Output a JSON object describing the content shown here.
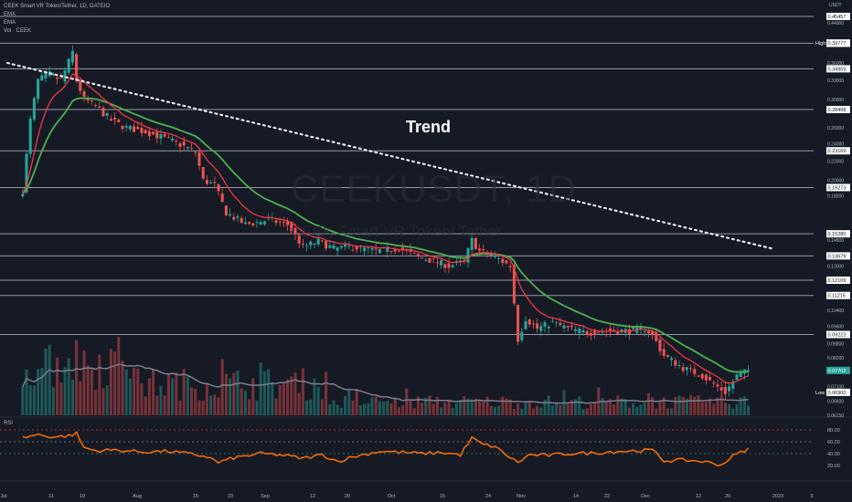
{
  "header": {
    "title": "CEEK Smart VR Token/Tether, 1D, GATEIO",
    "indicator_1": "EMA",
    "indicator_2": "EMA",
    "volume_label": "Vol · CEEK",
    "rsi_label": "RSI",
    "unit": "USDT"
  },
  "watermark": {
    "symbol": "CEEKUSDT, 1D",
    "name": "CEEK Smart VR Token/ Tether"
  },
  "annotation": {
    "trend": "Trend"
  },
  "colors": {
    "background": "#161a25",
    "up": "#26a69a",
    "down": "#ef5350",
    "ema_fast": "#f23645",
    "ema_slow": "#4caf50",
    "rsi": "#ff6d00",
    "volume_ma": "#7a7f8b",
    "hline": "#9598a1",
    "trendline": "#ffffff",
    "label_bg": "#ffffff"
  },
  "chart_data": {
    "type": "candlestick",
    "scale": "log",
    "x_ticks": [
      "Jul",
      "11",
      "19",
      "Aug",
      "15",
      "23",
      "Sep",
      "12",
      "20",
      "Oct",
      "15",
      "24",
      "Nov",
      "14",
      "22",
      "Dec",
      "12",
      "20",
      "2023",
      "9"
    ],
    "y_ticks": [
      "0.44000",
      "0.36000",
      "0.33000",
      "0.30000",
      "0.26000",
      "0.24000",
      "0.22000",
      "0.20000",
      "0.18500",
      "0.14800",
      "0.13000",
      "0.10400",
      "0.09600",
      "0.08800",
      "0.08200",
      "0.07100",
      "0.06600",
      "0.06150"
    ],
    "price_levels": [
      {
        "label": "0.45457",
        "value": 0.45457
      },
      {
        "label": "0.39736",
        "value": 0.39736
      },
      {
        "label": "0.34959",
        "value": 0.34959
      },
      {
        "label": "0.28498",
        "value": 0.28498
      },
      {
        "label": "0.23169",
        "value": 0.23169
      },
      {
        "label": "0.19273",
        "value": 0.19273
      },
      {
        "label": "0.15280",
        "value": 0.1528
      },
      {
        "label": "0.13679",
        "value": 0.13679
      },
      {
        "label": "0.12109",
        "value": 0.12109
      },
      {
        "label": "0.11215",
        "value": 0.11215
      },
      {
        "label": "0.09222",
        "value": 0.09222
      }
    ],
    "high": {
      "tag": "High",
      "label": "0.39777",
      "value": 0.39777
    },
    "low": {
      "tag": "Low",
      "label": "0.06900",
      "value": 0.069
    },
    "last": {
      "label": "0.07702",
      "value": 0.07702
    },
    "trendline": {
      "from": {
        "date": "Jun 27",
        "price": 0.36
      },
      "to": {
        "date": "Jan 12",
        "price": 0.142
      },
      "style": "dotted"
    },
    "close_path": [
      {
        "date": "Jul 1",
        "close": 0.19
      },
      {
        "date": "Jul 3",
        "close": 0.27
      },
      {
        "date": "Jul 5",
        "close": 0.33
      },
      {
        "date": "Jul 8",
        "close": 0.34
      },
      {
        "date": "Jul 11",
        "close": 0.33
      },
      {
        "date": "Jul 14",
        "close": 0.38
      },
      {
        "date": "Jul 15",
        "close": 0.33
      },
      {
        "date": "Jul 17",
        "close": 0.3
      },
      {
        "date": "Jul 20",
        "close": 0.29
      },
      {
        "date": "Jul 24",
        "close": 0.27
      },
      {
        "date": "Jul 28",
        "close": 0.26
      },
      {
        "date": "Aug 2",
        "close": 0.255
      },
      {
        "date": "Aug 8",
        "close": 0.245
      },
      {
        "date": "Aug 13",
        "close": 0.235
      },
      {
        "date": "Aug 15",
        "close": 0.23
      },
      {
        "date": "Aug 17",
        "close": 0.2
      },
      {
        "date": "Aug 20",
        "close": 0.195
      },
      {
        "date": "Aug 23",
        "close": 0.17
      },
      {
        "date": "Aug 28",
        "close": 0.16
      },
      {
        "date": "Sep 3",
        "close": 0.164
      },
      {
        "date": "Sep 8",
        "close": 0.16
      },
      {
        "date": "Sep 12",
        "close": 0.143
      },
      {
        "date": "Sep 16",
        "close": 0.147
      },
      {
        "date": "Sep 20",
        "close": 0.142
      },
      {
        "date": "Sep 25",
        "close": 0.143
      },
      {
        "date": "Oct 1",
        "close": 0.14
      },
      {
        "date": "Oct 7",
        "close": 0.142
      },
      {
        "date": "Oct 12",
        "close": 0.136
      },
      {
        "date": "Oct 15",
        "close": 0.134
      },
      {
        "date": "Oct 20",
        "close": 0.13
      },
      {
        "date": "Oct 24",
        "close": 0.133
      },
      {
        "date": "Oct 26",
        "close": 0.148
      },
      {
        "date": "Oct 28",
        "close": 0.14
      },
      {
        "date": "Nov 1",
        "close": 0.136
      },
      {
        "date": "Nov 5",
        "close": 0.13
      },
      {
        "date": "Nov 7",
        "close": 0.09
      },
      {
        "date": "Nov 9",
        "close": 0.1
      },
      {
        "date": "Nov 12",
        "close": 0.095
      },
      {
        "date": "Nov 16",
        "close": 0.098
      },
      {
        "date": "Nov 20",
        "close": 0.095
      },
      {
        "date": "Nov 25",
        "close": 0.093
      },
      {
        "date": "Dec 1",
        "close": 0.094
      },
      {
        "date": "Dec 6",
        "close": 0.094
      },
      {
        "date": "Dec 10",
        "close": 0.095
      },
      {
        "date": "Dec 12",
        "close": 0.092
      },
      {
        "date": "Dec 15",
        "close": 0.083
      },
      {
        "date": "Dec 20",
        "close": 0.078
      },
      {
        "date": "Dec 25",
        "close": 0.075
      },
      {
        "date": "Dec 31",
        "close": 0.069
      },
      {
        "date": "Jan 3",
        "close": 0.075
      },
      {
        "date": "Jan 6",
        "close": 0.077
      }
    ],
    "rsi": {
      "levels": [
        80,
        60,
        40
      ],
      "ticks": [
        "80.00",
        "60.00",
        "40.00",
        "20.00"
      ],
      "values": [
        {
          "date": "Jul 1",
          "rsi": 67
        },
        {
          "date": "Jul 5",
          "rsi": 72
        },
        {
          "date": "Jul 9",
          "rsi": 68
        },
        {
          "date": "Jul 13",
          "rsi": 70
        },
        {
          "date": "Jul 15",
          "rsi": 74
        },
        {
          "date": "Jul 17",
          "rsi": 50
        },
        {
          "date": "Jul 20",
          "rsi": 45
        },
        {
          "date": "Jul 25",
          "rsi": 46
        },
        {
          "date": "Aug 1",
          "rsi": 43
        },
        {
          "date": "Aug 8",
          "rsi": 44
        },
        {
          "date": "Aug 15",
          "rsi": 38
        },
        {
          "date": "Aug 18",
          "rsi": 35
        },
        {
          "date": "Aug 21",
          "rsi": 25
        },
        {
          "date": "Aug 25",
          "rsi": 33
        },
        {
          "date": "Sep 1",
          "rsi": 40
        },
        {
          "date": "Sep 6",
          "rsi": 38
        },
        {
          "date": "Sep 12",
          "rsi": 32
        },
        {
          "date": "Sep 17",
          "rsi": 38
        },
        {
          "date": "Sep 21",
          "rsi": 27
        },
        {
          "date": "Sep 26",
          "rsi": 36
        },
        {
          "date": "Oct 2",
          "rsi": 44
        },
        {
          "date": "Oct 8",
          "rsi": 42
        },
        {
          "date": "Oct 13",
          "rsi": 40
        },
        {
          "date": "Oct 18",
          "rsi": 42
        },
        {
          "date": "Oct 23",
          "rsi": 38
        },
        {
          "date": "Oct 26",
          "rsi": 66
        },
        {
          "date": "Oct 29",
          "rsi": 55
        },
        {
          "date": "Nov 1",
          "rsi": 52
        },
        {
          "date": "Nov 3",
          "rsi": 42
        },
        {
          "date": "Nov 7",
          "rsi": 25
        },
        {
          "date": "Nov 10",
          "rsi": 38
        },
        {
          "date": "Nov 15",
          "rsi": 37
        },
        {
          "date": "Nov 20",
          "rsi": 40
        },
        {
          "date": "Nov 27",
          "rsi": 41
        },
        {
          "date": "Dec 3",
          "rsi": 44
        },
        {
          "date": "Dec 9",
          "rsi": 45
        },
        {
          "date": "Dec 12",
          "rsi": 46
        },
        {
          "date": "Dec 15",
          "rsi": 28
        },
        {
          "date": "Dec 20",
          "rsi": 29
        },
        {
          "date": "Dec 25",
          "rsi": 27
        },
        {
          "date": "Dec 30",
          "rsi": 21
        },
        {
          "date": "Jan 2",
          "rsi": 36
        },
        {
          "date": "Jan 6",
          "rsi": 48
        }
      ]
    }
  }
}
